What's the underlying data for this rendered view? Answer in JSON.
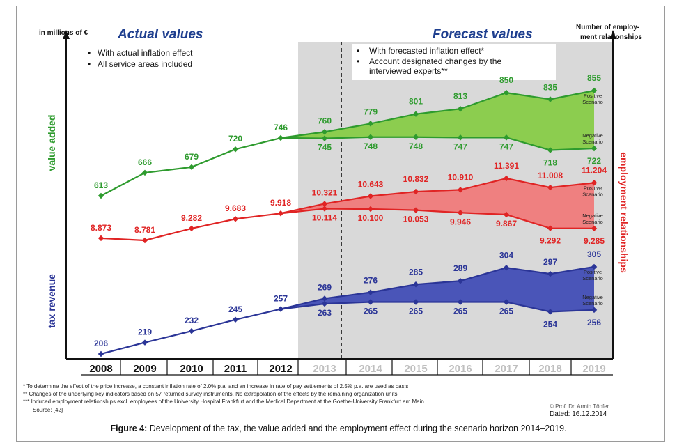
{
  "chart_data": {
    "type": "area",
    "title_left": "Actual values",
    "title_right": "Forecast values",
    "left_axis_label": "in millions of €",
    "right_axis_label": "Number of employ-ment relationships",
    "right_axis_label_line1": "Number of employ-",
    "right_axis_label_line2": "ment relationships",
    "years": [
      "2008",
      "2009",
      "2010",
      "2011",
      "2012",
      "2013",
      "2014",
      "2015",
      "2016",
      "2017",
      "2018",
      "2019"
    ],
    "actual_notes": [
      "With actual inflation effect",
      "All service areas included"
    ],
    "forecast_notes": [
      "With forecasted inflation effect*",
      "Account designated changes by the interviewed experts**"
    ],
    "forecast_note_lines": [
      "With forecasted inflation effect*",
      "Account designated changes by the",
      "interviewed experts**"
    ],
    "series": [
      {
        "name": "value added",
        "color": "#2e9b2e",
        "fill": "#8ccd4f",
        "actual": [
          613,
          666,
          679,
          720,
          746
        ],
        "actual_labels": [
          "613",
          "666",
          "679",
          "720",
          "746"
        ],
        "positive": [
          760,
          779,
          801,
          813,
          850,
          835,
          855
        ],
        "positive_labels": [
          "760",
          "779",
          "801",
          "813",
          "850",
          "835",
          "855"
        ],
        "negative": [
          745,
          748,
          748,
          747,
          747,
          718,
          722
        ],
        "negative_labels": [
          "745",
          "748",
          "748",
          "747",
          "747",
          "718",
          "722"
        ]
      },
      {
        "name": "employment relationships",
        "color": "#e02424",
        "fill": "#ef8080",
        "actual": [
          8873,
          8781,
          9282,
          9683,
          9918
        ],
        "actual_labels": [
          "8.873",
          "8.781",
          "9.282",
          "9.683",
          "9.918"
        ],
        "positive": [
          10321,
          10643,
          10832,
          10910,
          11391,
          11008,
          11204
        ],
        "positive_labels": [
          "10.321",
          "10.643",
          "10.832",
          "10.910",
          "11.391",
          "11.008",
          "11.204"
        ],
        "negative": [
          10114,
          10100,
          10053,
          9946,
          9867,
          9292,
          9285
        ],
        "negative_labels": [
          "10.114",
          "10.100",
          "10.053",
          "9.946",
          "9.867",
          "9.292",
          "9.285"
        ]
      },
      {
        "name": "tax revenue",
        "color": "#2b3597",
        "fill": "#4a55b8",
        "actual": [
          206,
          219,
          232,
          245,
          257
        ],
        "actual_labels": [
          "206",
          "219",
          "232",
          "245",
          "257"
        ],
        "positive": [
          269,
          276,
          285,
          289,
          304,
          297,
          305
        ],
        "positive_labels": [
          "269",
          "276",
          "285",
          "289",
          "304",
          "297",
          "305"
        ],
        "negative": [
          263,
          265,
          265,
          265,
          265,
          254,
          256
        ],
        "negative_labels": [
          "263",
          "265",
          "265",
          "265",
          "265",
          "254",
          "256"
        ]
      }
    ],
    "scenario_labels": {
      "positive_1": "Positive",
      "positive_2": "Scenario",
      "negative_1": "Negative",
      "negative_2": "Scenario"
    }
  },
  "footnotes": [
    "* To determine the effect of the price increase, a constant inflation rate of 2.0% p.a. and an increase in rate of pay settlements of 2.5% p.a. are used as basis",
    "** Changes of the underlying key indicators based on 57 returned survey instruments. No extrapolation of the effects by the remaining organization units",
    "*** Induced employment relationships excl. employees of the University Hospital Frankfurt and the Medical Department at the Goethe-University Frankfurt am Main",
    "Source: [42]"
  ],
  "credit": "© Prof. Dr. Armin Töpfer",
  "dated": "Dated: 16.12.2014",
  "caption_label": "Figure 4:",
  "caption_text": " Development of the tax, the value added and the employment effect during the scenario horizon 2014–2019.",
  "colors": {
    "forecast_shade": "#d9d9d9",
    "title_blue": "#1f3f8f"
  }
}
